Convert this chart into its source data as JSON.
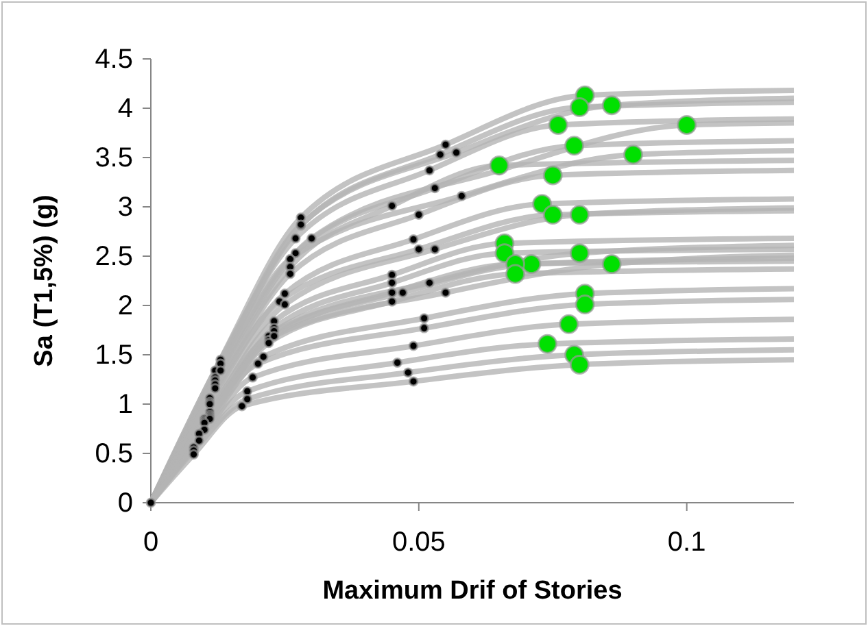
{
  "chart_data": {
    "type": "line",
    "xlabel": "Maximum Drif of Stories",
    "ylabel": "Sa (T1,5%) (g)",
    "xlim": [
      0,
      0.12
    ],
    "xticks": [
      0,
      0.05,
      0.1
    ],
    "ylim": [
      0,
      4.5
    ],
    "yticks": [
      0,
      0.5,
      1,
      1.5,
      2,
      2.5,
      3,
      3.5,
      4,
      4.5
    ],
    "grid": false,
    "line_style": "solid",
    "series": [
      {
        "color": "#b4b4b4",
        "marker": "none",
        "x": [
          0,
          0.013,
          0.028,
          0.055,
          0.081,
          0.12
        ],
        "values": [
          0,
          1.45,
          2.89,
          3.63,
          4.13,
          4.18
        ]
      },
      {
        "color": "#b4b4b4",
        "marker": "none",
        "x": [
          0,
          0.013,
          0.028,
          0.054,
          0.08,
          0.12
        ],
        "values": [
          0,
          1.4,
          2.81,
          3.53,
          4.01,
          4.06
        ]
      },
      {
        "color": "#b4b4b4",
        "marker": "none",
        "x": [
          0,
          0.013,
          0.028,
          0.057,
          0.086,
          0.12
        ],
        "values": [
          0,
          1.41,
          2.82,
          3.55,
          4.03,
          4.1
        ]
      },
      {
        "color": "#b4b4b4",
        "marker": "none",
        "x": [
          0,
          0.012,
          0.027,
          0.052,
          0.076,
          0.12
        ],
        "values": [
          0,
          1.34,
          2.68,
          3.37,
          3.83,
          3.89
        ]
      },
      {
        "color": "#b4b4b4",
        "marker": "none",
        "x": [
          0,
          0.013,
          0.03,
          0.065,
          0.1,
          0.12
        ],
        "values": [
          0,
          1.34,
          2.68,
          3.37,
          3.83,
          3.85
        ]
      },
      {
        "color": "#b4b4b4",
        "marker": "none",
        "x": [
          0,
          0.012,
          0.027,
          0.053,
          0.079,
          0.12
        ],
        "values": [
          0,
          1.27,
          2.53,
          3.19,
          3.62,
          3.67
        ]
      },
      {
        "color": "#b4b4b4",
        "marker": "none",
        "x": [
          0,
          0.012,
          0.026,
          0.058,
          0.09,
          0.12
        ],
        "values": [
          0,
          1.24,
          2.47,
          3.11,
          3.53,
          3.57
        ]
      },
      {
        "color": "#b4b4b4",
        "marker": "none",
        "x": [
          0,
          0.012,
          0.026,
          0.045,
          0.065,
          0.12
        ],
        "values": [
          0,
          1.2,
          2.39,
          3.01,
          3.42,
          3.47
        ]
      },
      {
        "color": "#b4b4b4",
        "marker": "none",
        "x": [
          0,
          0.012,
          0.026,
          0.05,
          0.075,
          0.12
        ],
        "values": [
          0,
          1.16,
          2.32,
          2.92,
          3.32,
          3.37
        ]
      },
      {
        "color": "#b4b4b4",
        "marker": "none",
        "x": [
          0,
          0.011,
          0.025,
          0.049,
          0.073,
          0.12
        ],
        "values": [
          0,
          1.06,
          2.12,
          2.67,
          3.03,
          3.08
        ]
      },
      {
        "color": "#b4b4b4",
        "marker": "none",
        "x": [
          0,
          0.011,
          0.024,
          0.05,
          0.075,
          0.12
        ],
        "values": [
          0,
          1.02,
          2.04,
          2.57,
          2.92,
          2.96
        ]
      },
      {
        "color": "#b4b4b4",
        "marker": "none",
        "x": [
          0,
          0.011,
          0.025,
          0.053,
          0.08,
          0.12
        ],
        "values": [
          0,
          1.0,
          2.01,
          2.57,
          2.92,
          2.99
        ]
      },
      {
        "color": "#b4b4b4",
        "marker": "none",
        "x": [
          0,
          0.011,
          0.023,
          0.045,
          0.066,
          0.12
        ],
        "values": [
          0,
          0.92,
          1.84,
          2.31,
          2.63,
          2.68
        ]
      },
      {
        "color": "#b4b4b4",
        "marker": "none",
        "x": [
          0,
          0.011,
          0.023,
          0.045,
          0.066,
          0.12
        ],
        "values": [
          0,
          0.89,
          1.77,
          2.23,
          2.53,
          2.57
        ]
      },
      {
        "color": "#b4b4b4",
        "marker": "none",
        "x": [
          0,
          0.011,
          0.023,
          0.052,
          0.08,
          0.12
        ],
        "values": [
          0,
          0.87,
          1.74,
          2.23,
          2.53,
          2.61
        ]
      },
      {
        "color": "#b4b4b4",
        "marker": "none",
        "x": [
          0,
          0.01,
          0.022,
          0.047,
          0.071,
          0.12
        ],
        "values": [
          0,
          0.85,
          1.69,
          2.13,
          2.42,
          2.48
        ]
      },
      {
        "color": "#b4b4b4",
        "marker": "none",
        "x": [
          0,
          0.01,
          0.022,
          0.045,
          0.068,
          0.12
        ],
        "values": [
          0,
          0.83,
          1.65,
          2.13,
          2.42,
          2.45
        ]
      },
      {
        "color": "#b4b4b4",
        "marker": "none",
        "x": [
          0,
          0.011,
          0.023,
          0.055,
          0.086,
          0.12
        ],
        "values": [
          0,
          0.85,
          1.69,
          2.13,
          2.42,
          2.51
        ]
      },
      {
        "color": "#b4b4b4",
        "marker": "none",
        "x": [
          0,
          0.01,
          0.022,
          0.045,
          0.068,
          0.12
        ],
        "values": [
          0,
          0.81,
          1.62,
          2.04,
          2.32,
          2.37
        ]
      },
      {
        "color": "#b4b4b4",
        "marker": "none",
        "x": [
          0,
          0.01,
          0.021,
          0.051,
          0.081,
          0.12
        ],
        "values": [
          0,
          0.74,
          1.48,
          1.87,
          2.12,
          2.17
        ]
      },
      {
        "color": "#b4b4b4",
        "marker": "none",
        "x": [
          0,
          0.009,
          0.02,
          0.051,
          0.081,
          0.12
        ],
        "values": [
          0,
          0.7,
          1.41,
          1.77,
          2.01,
          2.06
        ]
      },
      {
        "color": "#b4b4b4",
        "marker": "none",
        "x": [
          0,
          0.009,
          0.019,
          0.049,
          0.078,
          0.12
        ],
        "values": [
          0,
          0.63,
          1.27,
          1.59,
          1.81,
          1.86
        ]
      },
      {
        "color": "#b4b4b4",
        "marker": "none",
        "x": [
          0,
          0.008,
          0.018,
          0.046,
          0.074,
          0.12
        ],
        "values": [
          0,
          0.56,
          1.13,
          1.42,
          1.61,
          1.66
        ]
      },
      {
        "color": "#b4b4b4",
        "marker": "none",
        "x": [
          0,
          0.008,
          0.018,
          0.048,
          0.079,
          0.12
        ],
        "values": [
          0,
          0.53,
          1.05,
          1.32,
          1.5,
          1.55
        ]
      },
      {
        "color": "#b4b4b4",
        "marker": "none",
        "x": [
          0,
          0.008,
          0.017,
          0.049,
          0.08,
          0.12
        ],
        "values": [
          0,
          0.49,
          0.98,
          1.23,
          1.4,
          1.45
        ]
      },
      {
        "type": "scatter",
        "color": "#000000",
        "marker": "circle",
        "x": [
          0,
          0.013,
          0.028,
          0.055,
          0.013,
          0.028,
          0.054,
          0.013,
          0.028,
          0.057,
          0.012,
          0.027,
          0.052,
          0.013,
          0.03,
          0.065,
          0.012,
          0.027,
          0.053,
          0.012,
          0.026,
          0.058,
          0.012,
          0.026,
          0.045,
          0.012,
          0.026,
          0.05,
          0.011,
          0.025,
          0.049,
          0.011,
          0.024,
          0.05,
          0.011,
          0.025,
          0.053,
          0.011,
          0.023,
          0.045,
          0.011,
          0.023,
          0.045,
          0.011,
          0.023,
          0.052,
          0.01,
          0.022,
          0.047,
          0.01,
          0.022,
          0.045,
          0.011,
          0.023,
          0.055,
          0.01,
          0.022,
          0.045,
          0.01,
          0.021,
          0.051,
          0.009,
          0.02,
          0.051,
          0.009,
          0.019,
          0.049,
          0.008,
          0.018,
          0.046,
          0.008,
          0.018,
          0.048,
          0.008,
          0.017,
          0.049
        ],
        "values": [
          0,
          1.45,
          2.89,
          3.63,
          1.4,
          2.81,
          3.53,
          1.41,
          2.82,
          3.55,
          1.34,
          2.68,
          3.37,
          1.34,
          2.68,
          3.37,
          1.27,
          2.53,
          3.19,
          1.24,
          2.47,
          3.11,
          1.2,
          2.39,
          3.01,
          1.16,
          2.32,
          2.92,
          1.06,
          2.12,
          2.67,
          1.02,
          2.04,
          2.57,
          1.0,
          2.01,
          2.57,
          0.92,
          1.84,
          2.31,
          0.89,
          1.77,
          2.23,
          0.87,
          1.74,
          2.23,
          0.85,
          1.69,
          2.13,
          0.83,
          1.65,
          2.13,
          0.85,
          1.69,
          2.13,
          0.81,
          1.62,
          2.04,
          0.74,
          1.48,
          1.87,
          0.7,
          1.41,
          1.77,
          0.63,
          1.27,
          1.59,
          0.56,
          1.13,
          1.42,
          0.53,
          1.05,
          1.32,
          0.49,
          0.98,
          1.23
        ]
      },
      {
        "type": "scatter",
        "color": "#00e000",
        "marker": "circle",
        "x": [
          0.081,
          0.08,
          0.086,
          0.076,
          0.1,
          0.079,
          0.09,
          0.065,
          0.075,
          0.073,
          0.075,
          0.08,
          0.066,
          0.066,
          0.08,
          0.071,
          0.068,
          0.086,
          0.068,
          0.081,
          0.081,
          0.078,
          0.074,
          0.079,
          0.08
        ],
        "values": [
          4.13,
          4.01,
          4.03,
          3.83,
          3.83,
          3.62,
          3.53,
          3.42,
          3.32,
          3.03,
          2.92,
          2.92,
          2.63,
          2.53,
          2.53,
          2.42,
          2.42,
          2.42,
          2.32,
          2.12,
          2.01,
          1.81,
          1.61,
          1.5,
          1.4
        ]
      }
    ]
  }
}
